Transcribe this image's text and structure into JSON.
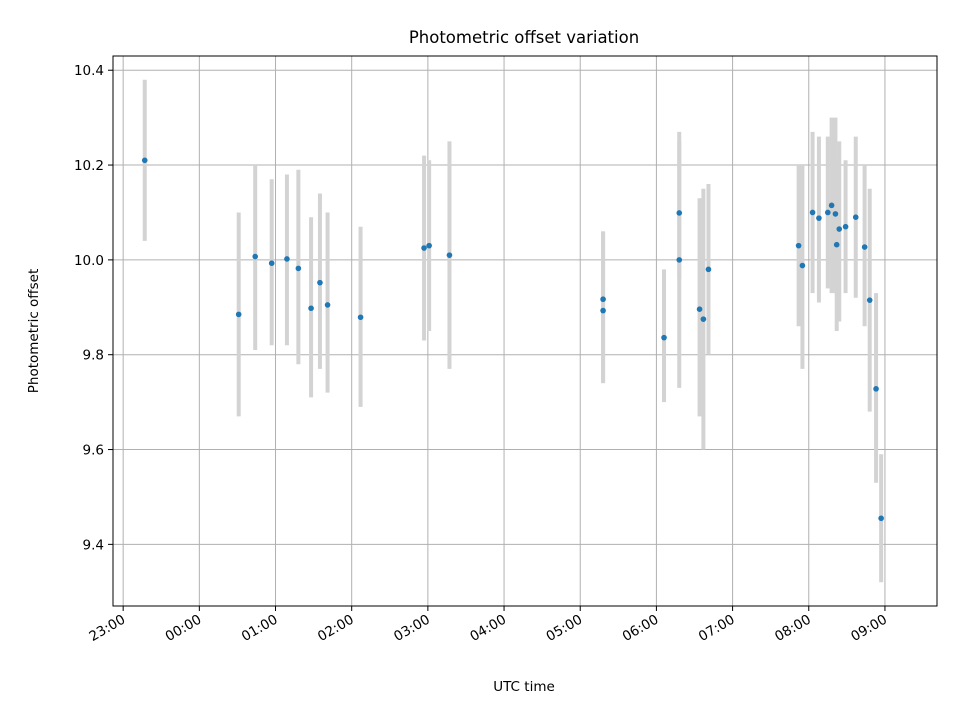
{
  "chart_data": {
    "type": "scatter",
    "title": "Photometric offset variation",
    "xlabel": "UTC time",
    "ylabel": "Photometric offset",
    "x_ticks": [
      "23:00",
      "00:00",
      "01:00",
      "02:00",
      "03:00",
      "04:00",
      "05:00",
      "06:00",
      "07:00",
      "08:00",
      "09:00"
    ],
    "y_ticks": [
      "9.4",
      "9.6",
      "9.8",
      "10.0",
      "10.2",
      "10.4"
    ],
    "xlim": [
      "22:52",
      "09:41"
    ],
    "ylim": [
      9.27,
      10.43
    ],
    "grid": true,
    "legend": "none",
    "points": [
      {
        "x": "23:17",
        "y": 10.21,
        "lo": 10.04,
        "hi": 10.38
      },
      {
        "x": "00:31",
        "y": 9.885,
        "lo": 9.67,
        "hi": 10.1
      },
      {
        "x": "00:44",
        "y": 10.007,
        "lo": 9.81,
        "hi": 10.2
      },
      {
        "x": "00:57",
        "y": 9.993,
        "lo": 9.82,
        "hi": 10.17
      },
      {
        "x": "01:09",
        "y": 10.002,
        "lo": 9.82,
        "hi": 10.18
      },
      {
        "x": "01:18",
        "y": 9.982,
        "lo": 9.78,
        "hi": 10.19
      },
      {
        "x": "01:28",
        "y": 9.898,
        "lo": 9.71,
        "hi": 10.09
      },
      {
        "x": "01:35",
        "y": 9.952,
        "lo": 9.77,
        "hi": 10.14
      },
      {
        "x": "01:41",
        "y": 9.905,
        "lo": 9.72,
        "hi": 10.1
      },
      {
        "x": "02:07",
        "y": 9.879,
        "lo": 9.69,
        "hi": 10.07
      },
      {
        "x": "02:57",
        "y": 10.025,
        "lo": 9.83,
        "hi": 10.22
      },
      {
        "x": "03:01",
        "y": 10.03,
        "lo": 9.85,
        "hi": 10.21
      },
      {
        "x": "03:17",
        "y": 10.01,
        "lo": 9.77,
        "hi": 10.25
      },
      {
        "x": "05:18",
        "y": 9.917,
        "lo": 9.74,
        "hi": 10.06
      },
      {
        "x": "05:18",
        "y": 9.893,
        "lo": 9.74,
        "hi": 10.06
      },
      {
        "x": "06:06",
        "y": 9.836,
        "lo": 9.7,
        "hi": 9.98
      },
      {
        "x": "06:18",
        "y": 10.099,
        "lo": 9.96,
        "hi": 10.25
      },
      {
        "x": "06:18",
        "y": 10.0,
        "lo": 9.73,
        "hi": 10.27
      },
      {
        "x": "06:34",
        "y": 9.896,
        "lo": 9.67,
        "hi": 10.13
      },
      {
        "x": "06:37",
        "y": 9.875,
        "lo": 9.6,
        "hi": 10.15
      },
      {
        "x": "06:41",
        "y": 9.98,
        "lo": 9.8,
        "hi": 10.16
      },
      {
        "x": "07:52",
        "y": 10.03,
        "lo": 9.86,
        "hi": 10.2
      },
      {
        "x": "07:55",
        "y": 9.988,
        "lo": 9.77,
        "hi": 10.2
      },
      {
        "x": "08:03",
        "y": 10.1,
        "lo": 9.93,
        "hi": 10.27
      },
      {
        "x": "08:08",
        "y": 10.088,
        "lo": 9.91,
        "hi": 10.26
      },
      {
        "x": "08:15",
        "y": 10.1,
        "lo": 9.94,
        "hi": 10.26
      },
      {
        "x": "08:18",
        "y": 10.115,
        "lo": 9.93,
        "hi": 10.3
      },
      {
        "x": "08:21",
        "y": 10.097,
        "lo": 9.93,
        "hi": 10.3
      },
      {
        "x": "08:22",
        "y": 10.032,
        "lo": 9.85,
        "hi": 10.21
      },
      {
        "x": "08:24",
        "y": 10.065,
        "lo": 9.87,
        "hi": 10.25
      },
      {
        "x": "08:29",
        "y": 10.07,
        "lo": 9.93,
        "hi": 10.21
      },
      {
        "x": "08:37",
        "y": 10.09,
        "lo": 9.92,
        "hi": 10.26
      },
      {
        "x": "08:44",
        "y": 10.027,
        "lo": 9.86,
        "hi": 10.2
      },
      {
        "x": "08:48",
        "y": 9.915,
        "lo": 9.68,
        "hi": 10.15
      },
      {
        "x": "08:53",
        "y": 9.728,
        "lo": 9.53,
        "hi": 9.93
      },
      {
        "x": "08:57",
        "y": 9.455,
        "lo": 9.32,
        "hi": 9.59
      }
    ]
  },
  "colors": {
    "marker": "#1f77b4",
    "errorbar": "#d3d3d3",
    "grid": "#b0b0b0",
    "axes": "#000000"
  }
}
